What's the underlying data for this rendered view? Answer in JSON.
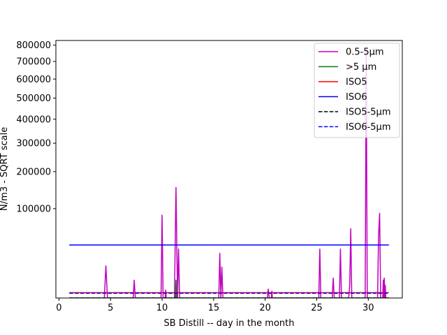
{
  "chart_data": {
    "type": "line",
    "title": "",
    "xlabel": "SB Distill -- day in the month",
    "ylabel": "N/m3 - SQRT scale",
    "y_scale": "sqrt",
    "xlim": [
      -0.3,
      33.3
    ],
    "ylim": [
      0,
      830000
    ],
    "x_ticks": [
      0,
      5,
      10,
      15,
      20,
      25,
      30
    ],
    "x_tick_labels": [
      "0",
      "5",
      "10",
      "15",
      "20",
      "25",
      "30"
    ],
    "y_ticks": [
      100000,
      200000,
      300000,
      400000,
      500000,
      600000,
      700000,
      800000
    ],
    "y_tick_labels": [
      "100000",
      "200000",
      "300000",
      "400000",
      "500000",
      "600000",
      "700000",
      "800000"
    ],
    "grid": false,
    "legend_position": "top-right",
    "series": [
      {
        "name": "0.5-5µm",
        "color": "#bf00bf",
        "style": "solid",
        "x": [
          1.0,
          4.4,
          4.55,
          4.7,
          7.2,
          7.3,
          7.4,
          9.9,
          10.0,
          10.1,
          10.3,
          10.35,
          10.4,
          11.2,
          11.35,
          11.5,
          11.6,
          11.7,
          11.8,
          15.5,
          15.6,
          15.7,
          15.8,
          15.9,
          20.2,
          20.3,
          20.4,
          20.6,
          20.65,
          20.7,
          25.2,
          25.3,
          25.4,
          26.5,
          26.6,
          26.7,
          27.2,
          27.3,
          27.4,
          28.1,
          28.2,
          28.3,
          28.4,
          29.7,
          29.8,
          29.9,
          30.9,
          31.0,
          31.1,
          31.2,
          31.4,
          31.45,
          31.5,
          31.55,
          31.6,
          31.65,
          31.7,
          32.0
        ],
        "y": [
          0,
          0,
          13000,
          0,
          0,
          4000,
          0,
          0,
          86000,
          0,
          0,
          800,
          0,
          0,
          153000,
          0,
          30000,
          0,
          0,
          0,
          25000,
          0,
          12000,
          0,
          0,
          1000,
          0,
          0,
          600,
          0,
          0,
          30000,
          0,
          0,
          5000,
          0,
          0,
          30000,
          0,
          0,
          2000,
          60000,
          0,
          0,
          760000,
          0,
          0,
          50000,
          90000,
          0,
          0,
          4000,
          0,
          5000,
          0,
          2000,
          0,
          0
        ]
      },
      {
        "name": ">5 µm",
        "color": "#008000",
        "style": "solid",
        "x": [
          1.0,
          11.3,
          11.35,
          11.4,
          32.0
        ],
        "y": [
          0,
          0,
          4000,
          0,
          0
        ]
      },
      {
        "name": "ISO5",
        "color": "#ff0000",
        "style": "solid",
        "x": [
          1.0,
          32.0
        ],
        "y": [
          352,
          352
        ]
      },
      {
        "name": "ISO6",
        "color": "#0000ff",
        "style": "solid",
        "x": [
          1.0,
          32.0
        ],
        "y": [
          35200,
          35200
        ]
      },
      {
        "name": "ISO5-5µm",
        "color": "#000000",
        "style": "dashed",
        "x": [
          1.0,
          32.0
        ],
        "y": [
          0,
          0
        ]
      },
      {
        "name": "ISO6-5µm",
        "color": "#0000ff",
        "style": "dashed",
        "x": [
          1.0,
          32.0
        ],
        "y": [
          293,
          293
        ]
      }
    ]
  }
}
